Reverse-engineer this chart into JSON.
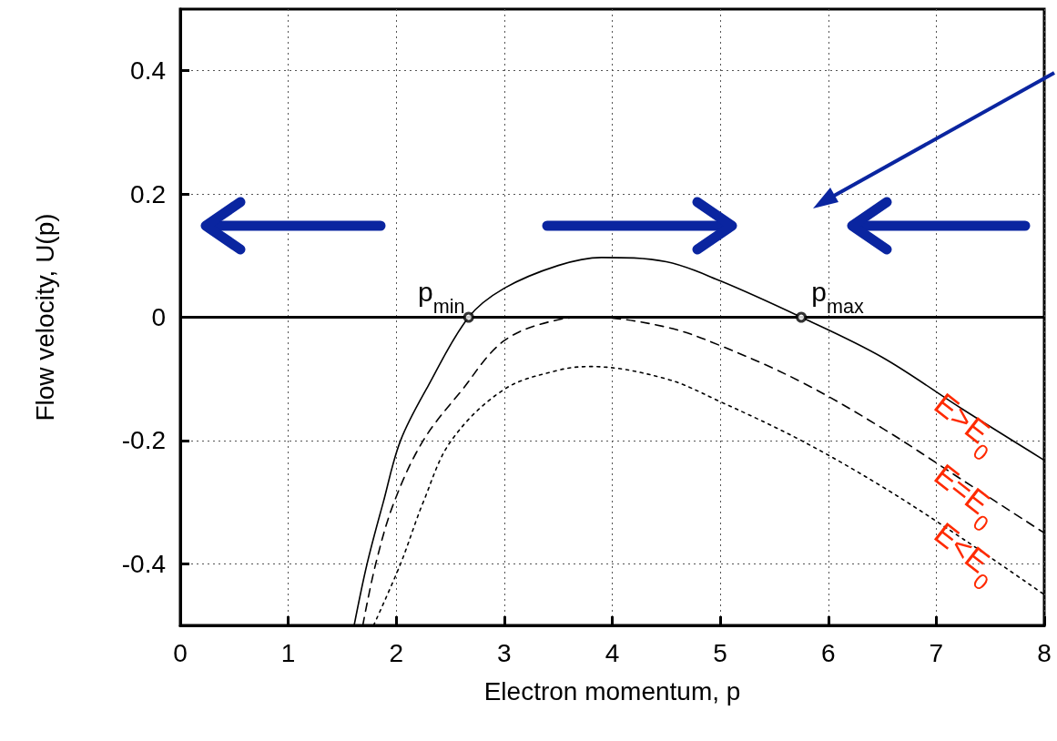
{
  "chart_data": {
    "type": "line",
    "xlabel": "Electron momentum, p",
    "ylabel": "Flow velocity, U(p)",
    "xlim": [
      0,
      8
    ],
    "ylim": [
      -0.5,
      0.5
    ],
    "xticks": [
      0,
      1,
      2,
      3,
      4,
      5,
      6,
      7,
      8
    ],
    "yticks": [
      -0.4,
      -0.2,
      0,
      0.2,
      0.4
    ],
    "grid": true,
    "legend": false,
    "marker": "none",
    "series": [
      {
        "name": "E>E$_{0}$",
        "color": "#000000",
        "line_style": "solid",
        "x": [
          1.61,
          1.73,
          1.88,
          2.04,
          2.3,
          2.67,
          3,
          3.5,
          3.9,
          4.5,
          5,
          5.75,
          6.5,
          7.25,
          8
        ],
        "values": [
          -0.5,
          -0.4,
          -0.3,
          -0.2,
          -0.11,
          0,
          0.047,
          0.084,
          0.097,
          0.09,
          0.059,
          0,
          -0.065,
          -0.15,
          -0.232
        ]
      },
      {
        "name": "E=E$_{0}$",
        "color": "#000000",
        "line_style": "dashed",
        "x": [
          1.69,
          1.81,
          1.98,
          2.25,
          2.6,
          3,
          3.5,
          3.8,
          4.5,
          5,
          5.75,
          6.5,
          7.25,
          8
        ],
        "values": [
          -0.5,
          -0.4,
          -0.3,
          -0.2,
          -0.12,
          -0.038,
          -0.004,
          0,
          -0.016,
          -0.046,
          -0.105,
          -0.18,
          -0.265,
          -0.35
        ]
      },
      {
        "name": "E<E$_{0}$",
        "color": "#000000",
        "line_style": "dotted",
        "x": [
          1.79,
          2.04,
          2.25,
          2.51,
          3,
          3.5,
          3.8,
          4.5,
          5,
          5.75,
          6.5,
          7.25,
          8
        ],
        "values": [
          -0.5,
          -0.4,
          -0.3,
          -0.2,
          -0.117,
          -0.086,
          -0.08,
          -0.1,
          -0.137,
          -0.2,
          -0.275,
          -0.36,
          -0.45
        ]
      },
      {
        "type": "scatter",
        "marker": "circle",
        "color": "#000000",
        "x": [
          2.67,
          5.75
        ],
        "values": [
          0,
          0
        ]
      }
    ],
    "ref_lines": [
      {
        "axis": "y",
        "value": 0,
        "color": "#000000"
      }
    ],
    "annotations": [
      {
        "text": "p$_{min}$",
        "x": 2.67,
        "y": 0
      },
      {
        "text": "p$_{max}$",
        "x": 5.75,
        "y": 0
      }
    ]
  }
}
